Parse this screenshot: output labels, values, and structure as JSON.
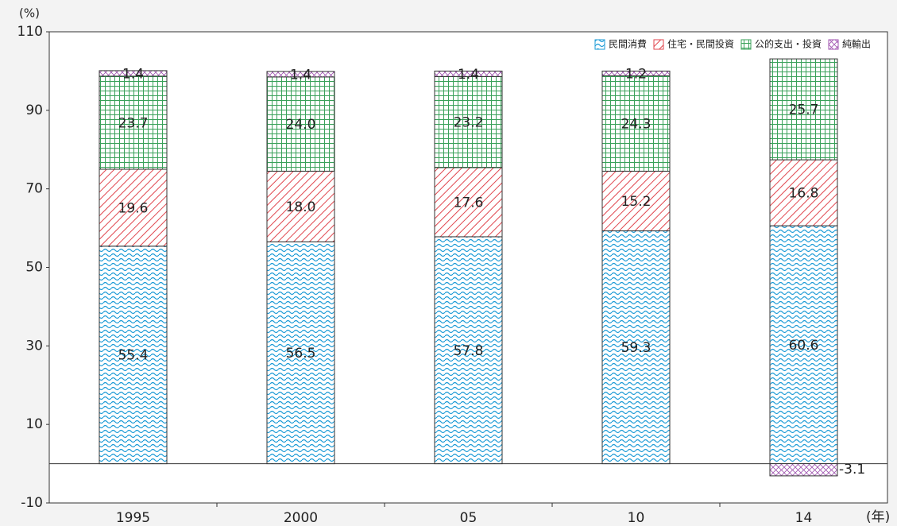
{
  "chart_data": {
    "type": "stacked-bar",
    "y_axis_label": "(%)",
    "x_axis_label": "(年)",
    "categories": [
      "1995",
      "2000",
      "05",
      "10",
      "14"
    ],
    "series": [
      {
        "name": "民間消費",
        "color": "#1a9ad6",
        "values": [
          55.4,
          56.5,
          57.8,
          59.3,
          60.6
        ],
        "value_labels": [
          "55.4",
          "56.5",
          "57.8",
          "59.3",
          "60.6"
        ]
      },
      {
        "name": "住宅・民間投資",
        "color": "#e0464e",
        "values": [
          19.6,
          18.0,
          17.6,
          15.2,
          16.8
        ],
        "value_labels": [
          "19.6",
          "18.0",
          "17.6",
          "15.2",
          "16.8"
        ]
      },
      {
        "name": "公的支出・投資",
        "color": "#3aa15a",
        "values": [
          23.7,
          24.0,
          23.2,
          24.3,
          25.7
        ],
        "value_labels": [
          "23.7",
          "24.0",
          "23.2",
          "24.3",
          "25.7"
        ]
      },
      {
        "name": "純輸出",
        "color": "#a055b0",
        "values": [
          1.4,
          1.4,
          1.4,
          1.2,
          -3.1
        ],
        "value_labels": [
          "1.4",
          "1.4",
          "1.4",
          "1.2",
          "-3.1"
        ]
      }
    ],
    "ylim": [
      -10,
      110
    ],
    "yticks": [
      -10,
      10,
      30,
      50,
      70,
      90,
      110
    ],
    "legend": "upper right"
  }
}
